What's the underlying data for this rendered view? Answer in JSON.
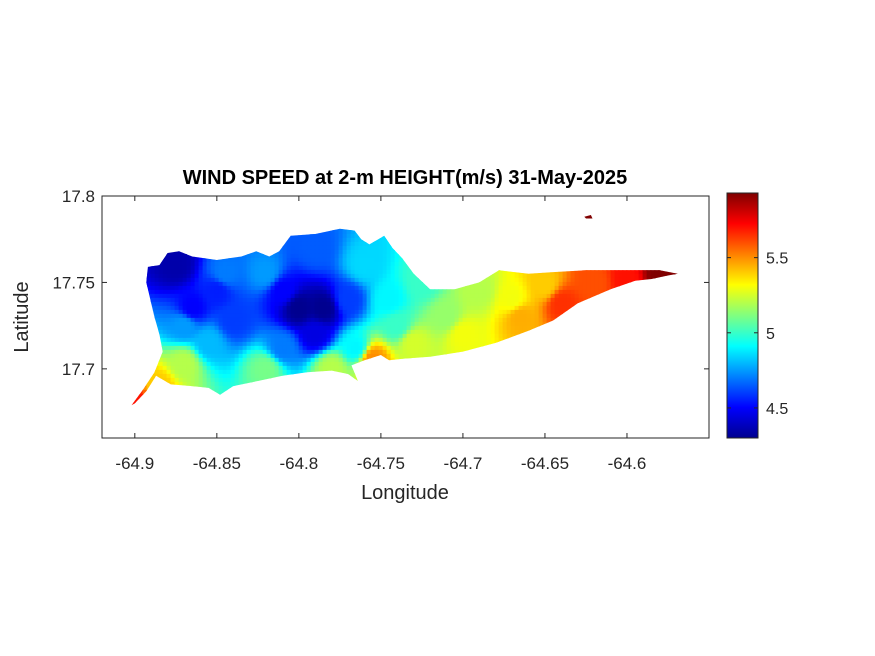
{
  "chart_data": {
    "type": "heatmap",
    "title": "WIND SPEED at 2-m HEIGHT(m/s) 31-May-2025",
    "xlabel": "Longitude",
    "ylabel": "Latitude",
    "xlim": [
      -64.92,
      -64.55
    ],
    "ylim": [
      17.66,
      17.8
    ],
    "x_ticks": [
      -64.9,
      -64.85,
      -64.8,
      -64.75,
      -64.7,
      -64.65,
      -64.6
    ],
    "x_tick_labels": [
      "-64.9",
      "-64.85",
      "-64.8",
      "-64.75",
      "-64.7",
      "-64.65",
      "-64.6"
    ],
    "y_ticks": [
      17.7,
      17.75,
      17.8
    ],
    "y_tick_labels": [
      "17.7",
      "17.75",
      "17.8"
    ],
    "grid": false,
    "colorbar": {
      "range": [
        4.3,
        5.93
      ],
      "ticks": [
        4.5,
        5,
        5.5
      ],
      "tick_labels": [
        "4.5",
        "5",
        "5.5"
      ],
      "colormap": "jet",
      "stops": [
        "#00008f",
        "#0000ff",
        "#0080ff",
        "#00ffff",
        "#80ff80",
        "#ffff00",
        "#ff8000",
        "#ff0000",
        "#800000"
      ]
    },
    "island_outline": [
      [
        -64.9,
        17.68
      ],
      [
        -64.893,
        17.687
      ],
      [
        -64.887,
        17.696
      ],
      [
        -64.878,
        17.691
      ],
      [
        -64.865,
        17.69
      ],
      [
        -64.855,
        17.689
      ],
      [
        -64.848,
        17.685
      ],
      [
        -64.84,
        17.69
      ],
      [
        -64.825,
        17.693
      ],
      [
        -64.81,
        17.696
      ],
      [
        -64.795,
        17.698
      ],
      [
        -64.78,
        17.699
      ],
      [
        -64.77,
        17.697
      ],
      [
        -64.764,
        17.693
      ],
      [
        -64.768,
        17.702
      ],
      [
        -64.76,
        17.705
      ],
      [
        -64.75,
        17.708
      ],
      [
        -64.745,
        17.705
      ],
      [
        -64.735,
        17.706
      ],
      [
        -64.72,
        17.707
      ],
      [
        -64.7,
        17.71
      ],
      [
        -64.68,
        17.715
      ],
      [
        -64.66,
        17.722
      ],
      [
        -64.645,
        17.728
      ],
      [
        -64.63,
        17.738
      ],
      [
        -64.61,
        17.746
      ],
      [
        -64.595,
        17.751
      ],
      [
        -64.585,
        17.752
      ],
      [
        -64.575,
        17.754
      ],
      [
        -64.569,
        17.755
      ],
      [
        -64.58,
        17.757
      ],
      [
        -64.595,
        17.757
      ],
      [
        -64.608,
        17.757
      ],
      [
        -64.625,
        17.757
      ],
      [
        -64.645,
        17.756
      ],
      [
        -64.66,
        17.755
      ],
      [
        -64.678,
        17.757
      ],
      [
        -64.69,
        17.75
      ],
      [
        -64.705,
        17.746
      ],
      [
        -64.72,
        17.746
      ],
      [
        -64.73,
        17.755
      ],
      [
        -64.737,
        17.764
      ],
      [
        -64.743,
        17.77
      ],
      [
        -64.748,
        17.777
      ],
      [
        -64.757,
        17.772
      ],
      [
        -64.762,
        17.775
      ],
      [
        -64.766,
        17.78
      ],
      [
        -64.775,
        17.781
      ],
      [
        -64.79,
        17.778
      ],
      [
        -64.805,
        17.777
      ],
      [
        -64.812,
        17.768
      ],
      [
        -64.818,
        17.765
      ],
      [
        -64.826,
        17.768
      ],
      [
        -64.835,
        17.765
      ],
      [
        -64.85,
        17.763
      ],
      [
        -64.865,
        17.765
      ],
      [
        -64.873,
        17.768
      ],
      [
        -64.88,
        17.767
      ],
      [
        -64.885,
        17.76
      ],
      [
        -64.892,
        17.759
      ],
      [
        -64.893,
        17.75
      ],
      [
        -64.89,
        17.738
      ],
      [
        -64.888,
        17.73
      ],
      [
        -64.885,
        17.72
      ],
      [
        -64.883,
        17.71
      ],
      [
        -64.888,
        17.698
      ],
      [
        -64.895,
        17.688
      ],
      [
        -64.902,
        17.679
      ]
    ],
    "islet_outline": [
      [
        -64.626,
        17.788
      ],
      [
        -64.622,
        17.789
      ],
      [
        -64.621,
        17.787
      ],
      [
        -64.625,
        17.787
      ]
    ],
    "field_samples": [
      {
        "lon": -64.875,
        "lat": 17.76,
        "value": 4.35
      },
      {
        "lon": -64.85,
        "lat": 17.745,
        "value": 4.55
      },
      {
        "lon": -64.865,
        "lat": 17.735,
        "value": 4.5
      },
      {
        "lon": -64.87,
        "lat": 17.725,
        "value": 4.75
      },
      {
        "lon": -64.855,
        "lat": 17.715,
        "value": 4.8
      },
      {
        "lon": -64.87,
        "lat": 17.703,
        "value": 5.2
      },
      {
        "lon": -64.885,
        "lat": 17.69,
        "value": 5.4
      },
      {
        "lon": -64.9,
        "lat": 17.68,
        "value": 5.7
      },
      {
        "lon": -64.84,
        "lat": 17.728,
        "value": 4.6
      },
      {
        "lon": -64.845,
        "lat": 17.755,
        "value": 4.7
      },
      {
        "lon": -64.82,
        "lat": 17.755,
        "value": 4.75
      },
      {
        "lon": -64.81,
        "lat": 17.745,
        "value": 4.5
      },
      {
        "lon": -64.8,
        "lat": 17.735,
        "value": 4.3
      },
      {
        "lon": -64.785,
        "lat": 17.735,
        "value": 4.3
      },
      {
        "lon": -64.79,
        "lat": 17.77,
        "value": 4.65
      },
      {
        "lon": -64.79,
        "lat": 17.72,
        "value": 4.45
      },
      {
        "lon": -64.81,
        "lat": 17.712,
        "value": 4.7
      },
      {
        "lon": -64.82,
        "lat": 17.7,
        "value": 5.1
      },
      {
        "lon": -64.78,
        "lat": 17.7,
        "value": 5.2
      },
      {
        "lon": -64.765,
        "lat": 17.712,
        "value": 4.9
      },
      {
        "lon": -64.77,
        "lat": 17.74,
        "value": 4.6
      },
      {
        "lon": -64.76,
        "lat": 17.76,
        "value": 4.85
      },
      {
        "lon": -64.745,
        "lat": 17.74,
        "value": 4.9
      },
      {
        "lon": -64.74,
        "lat": 17.725,
        "value": 5.0
      },
      {
        "lon": -64.755,
        "lat": 17.706,
        "value": 5.5
      },
      {
        "lon": -64.73,
        "lat": 17.715,
        "value": 5.25
      },
      {
        "lon": -64.725,
        "lat": 17.75,
        "value": 5.0
      },
      {
        "lon": -64.71,
        "lat": 17.73,
        "value": 5.15
      },
      {
        "lon": -64.7,
        "lat": 17.72,
        "value": 5.3
      },
      {
        "lon": -64.69,
        "lat": 17.745,
        "value": 5.2
      },
      {
        "lon": -64.67,
        "lat": 17.74,
        "value": 5.3
      },
      {
        "lon": -64.665,
        "lat": 17.73,
        "value": 5.45
      },
      {
        "lon": -64.65,
        "lat": 17.748,
        "value": 5.4
      },
      {
        "lon": -64.64,
        "lat": 17.738,
        "value": 5.65
      },
      {
        "lon": -64.62,
        "lat": 17.75,
        "value": 5.6
      },
      {
        "lon": -64.6,
        "lat": 17.752,
        "value": 5.7
      },
      {
        "lon": -64.58,
        "lat": 17.755,
        "value": 5.93
      },
      {
        "lon": -64.623,
        "lat": 17.788,
        "value": 5.93
      }
    ]
  }
}
